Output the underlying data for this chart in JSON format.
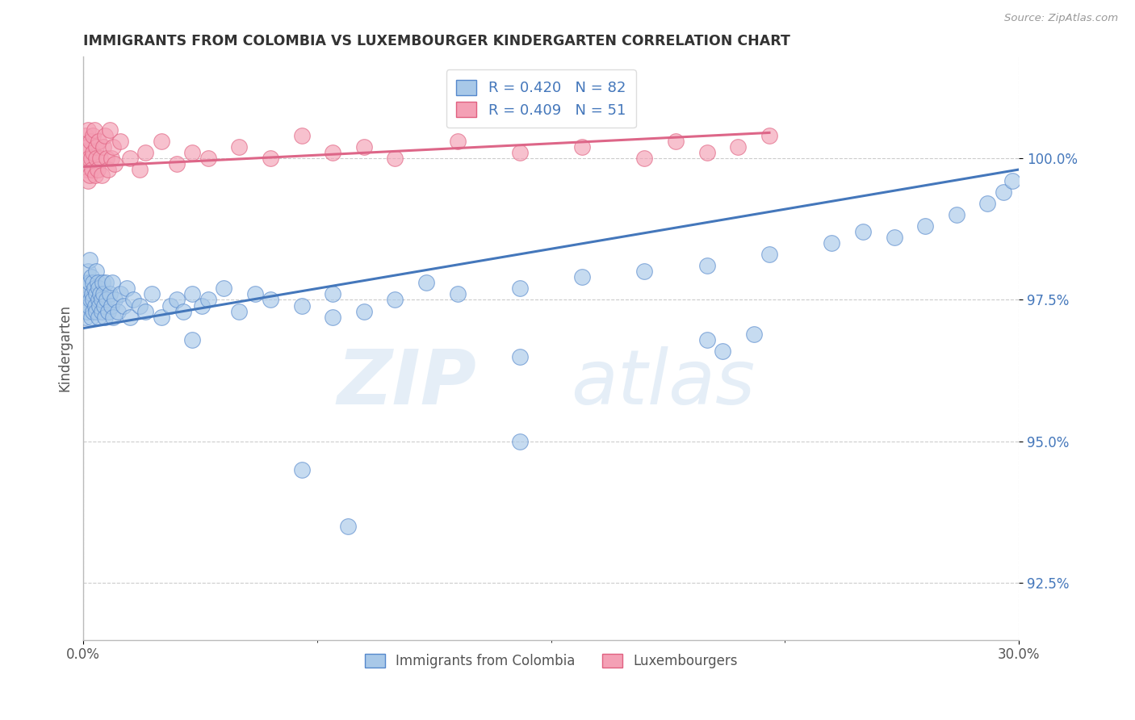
{
  "title": "IMMIGRANTS FROM COLOMBIA VS LUXEMBOURGER KINDERGARTEN CORRELATION CHART",
  "source": "Source: ZipAtlas.com",
  "ylabel": "Kindergarten",
  "xmin": 0.0,
  "xmax": 30.0,
  "ymin": 91.5,
  "ymax": 101.8,
  "yticks": [
    92.5,
    95.0,
    97.5,
    100.0
  ],
  "ytick_labels": [
    "92.5%",
    "95.0%",
    "97.5%",
    "100.0%"
  ],
  "xticks": [
    0.0,
    30.0
  ],
  "xtick_labels": [
    "0.0%",
    "30.0%"
  ],
  "legend_labels": [
    "Immigrants from Colombia",
    "Luxembourgers"
  ],
  "R_blue": 0.42,
  "N_blue": 82,
  "R_pink": 0.409,
  "N_pink": 51,
  "blue_color": "#A8C8E8",
  "pink_color": "#F4A0B5",
  "blue_edge_color": "#5588CC",
  "pink_edge_color": "#E06080",
  "blue_line_color": "#4477BB",
  "pink_line_color": "#DD6688",
  "watermark_zip": "ZIP",
  "watermark_atlas": "atlas",
  "blue_scatter_x": [
    0.05,
    0.08,
    0.1,
    0.12,
    0.15,
    0.15,
    0.18,
    0.2,
    0.2,
    0.22,
    0.25,
    0.25,
    0.28,
    0.3,
    0.3,
    0.32,
    0.35,
    0.38,
    0.4,
    0.4,
    0.42,
    0.45,
    0.48,
    0.5,
    0.5,
    0.52,
    0.55,
    0.58,
    0.6,
    0.62,
    0.65,
    0.68,
    0.7,
    0.72,
    0.75,
    0.8,
    0.85,
    0.9,
    0.92,
    0.95,
    1.0,
    1.1,
    1.2,
    1.3,
    1.4,
    1.5,
    1.6,
    1.8,
    2.0,
    2.2,
    2.5,
    2.8,
    3.0,
    3.2,
    3.5,
    3.8,
    4.0,
    4.5,
    5.0,
    5.5,
    6.0,
    7.0,
    8.0,
    9.0,
    10.0,
    11.0,
    12.0,
    14.0,
    16.0,
    18.0,
    20.0,
    22.0,
    24.0,
    25.0,
    26.0,
    27.0,
    28.0,
    29.0,
    29.5,
    29.8,
    20.5,
    21.5
  ],
  "blue_scatter_y": [
    97.5,
    97.2,
    97.8,
    97.3,
    97.6,
    98.0,
    97.4,
    97.8,
    98.2,
    97.5,
    97.2,
    97.9,
    97.6,
    97.3,
    97.8,
    97.5,
    97.7,
    97.4,
    97.6,
    98.0,
    97.3,
    97.8,
    97.5,
    97.2,
    97.7,
    97.4,
    97.6,
    97.3,
    97.5,
    97.8,
    97.6,
    97.4,
    97.2,
    97.8,
    97.5,
    97.3,
    97.6,
    97.4,
    97.8,
    97.2,
    97.5,
    97.3,
    97.6,
    97.4,
    97.7,
    97.2,
    97.5,
    97.4,
    97.3,
    97.6,
    97.2,
    97.4,
    97.5,
    97.3,
    97.6,
    97.4,
    97.5,
    97.7,
    97.3,
    97.6,
    97.5,
    97.4,
    97.6,
    97.3,
    97.5,
    97.8,
    97.6,
    97.7,
    97.9,
    98.0,
    98.1,
    98.3,
    98.5,
    98.7,
    98.6,
    98.8,
    99.0,
    99.2,
    99.4,
    99.6,
    96.6,
    96.9
  ],
  "pink_scatter_x": [
    0.05,
    0.08,
    0.1,
    0.12,
    0.15,
    0.15,
    0.18,
    0.2,
    0.22,
    0.25,
    0.28,
    0.3,
    0.32,
    0.35,
    0.38,
    0.4,
    0.42,
    0.45,
    0.5,
    0.55,
    0.6,
    0.65,
    0.7,
    0.75,
    0.8,
    0.85,
    0.9,
    0.95,
    1.0,
    1.2,
    1.5,
    1.8,
    2.0,
    2.5,
    3.0,
    3.5,
    4.0,
    5.0,
    6.0,
    7.0,
    8.0,
    9.0,
    10.0,
    12.0,
    14.0,
    16.0,
    18.0,
    19.0,
    20.0,
    21.0,
    22.0
  ],
  "pink_scatter_y": [
    100.1,
    100.4,
    99.8,
    100.2,
    99.6,
    100.5,
    100.0,
    99.7,
    100.3,
    100.0,
    99.8,
    100.4,
    100.1,
    100.5,
    99.7,
    100.2,
    100.0,
    99.8,
    100.3,
    100.0,
    99.7,
    100.2,
    100.4,
    100.0,
    99.8,
    100.5,
    100.0,
    100.2,
    99.9,
    100.3,
    100.0,
    99.8,
    100.1,
    100.3,
    99.9,
    100.1,
    100.0,
    100.2,
    100.0,
    100.4,
    100.1,
    100.2,
    100.0,
    100.3,
    100.1,
    100.2,
    100.0,
    100.3,
    100.1,
    100.2,
    100.4
  ],
  "blue_line_x0": 0.0,
  "blue_line_x1": 30.0,
  "blue_line_y0": 97.0,
  "blue_line_y1": 99.8,
  "pink_line_x0": 0.0,
  "pink_line_x1": 22.0,
  "pink_line_y0": 99.85,
  "pink_line_y1": 100.45,
  "extra_blue_x": [
    3.5,
    8.0,
    14.0,
    20.0,
    7.0,
    14.0,
    8.5
  ],
  "extra_blue_y": [
    96.8,
    97.2,
    96.5,
    96.8,
    94.5,
    95.0,
    93.5
  ]
}
